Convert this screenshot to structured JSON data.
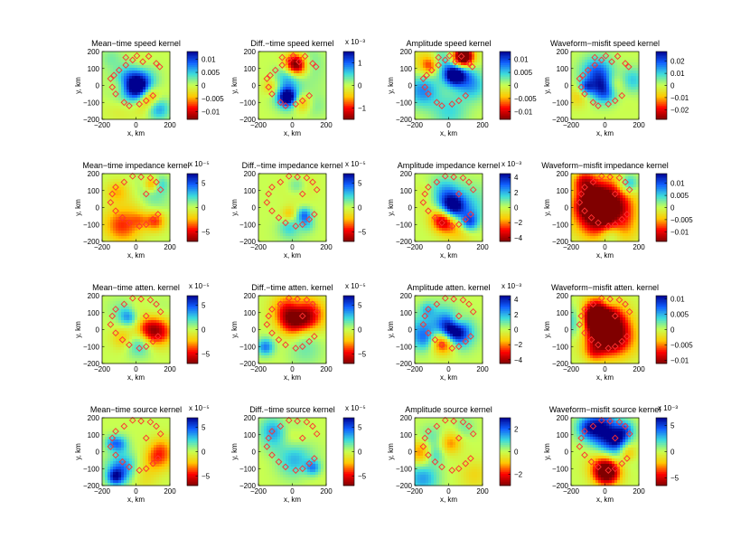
{
  "figure": {
    "axis_xlabel": "x, km",
    "axis_ylabel": "y, km",
    "colormap": [
      "#800000",
      "#ff0000",
      "#ffc800",
      "#c8ff50",
      "#3cdcdc",
      "#1060ff",
      "#000090"
    ],
    "marker_color": "#ff3030"
  },
  "chart_data": [
    {
      "type": "heatmap",
      "row": 0,
      "col": 0,
      "title": "Mean−time speed kernel",
      "exponent": "",
      "cbar_ticks": [
        "0.01",
        "0.005",
        "0",
        "−0.005",
        "−0.01"
      ],
      "cbar_tick_values": [
        0.01,
        0.005,
        0,
        -0.005,
        -0.01
      ],
      "cbar_range": [
        -0.013,
        0.013
      ],
      "xticks": [
        "−200",
        "0",
        "200"
      ],
      "yticks": [
        "200",
        "100",
        "0",
        "−100",
        "−200"
      ],
      "xlim": [
        -200,
        200
      ],
      "ylim": [
        -200,
        200
      ],
      "xlabel": "x, km",
      "ylabel": "y, km",
      "pattern": "speed",
      "mode": "meanSpeed"
    },
    {
      "type": "heatmap",
      "row": 0,
      "col": 1,
      "title": "Diff.−time speed kernel",
      "exponent": "x 10⁻³",
      "cbar_ticks": [
        "1",
        "0",
        "−1"
      ],
      "cbar_tick_values": [
        1,
        0,
        -1
      ],
      "cbar_range": [
        -1.5,
        1.5
      ],
      "xticks": [
        "−200",
        "0",
        "200"
      ],
      "yticks": [
        "200",
        "100",
        "0",
        "−100",
        "−200"
      ],
      "xlim": [
        -200,
        200
      ],
      "ylim": [
        -200,
        200
      ],
      "xlabel": "x, km",
      "ylabel": "y, km",
      "pattern": "speed",
      "mode": "diffSpeed"
    },
    {
      "type": "heatmap",
      "row": 0,
      "col": 2,
      "title": "Amplitude speed kernel",
      "exponent": "",
      "cbar_ticks": [
        "0.01",
        "0.005",
        "0",
        "−0.005",
        "−0.01"
      ],
      "cbar_tick_values": [
        0.01,
        0.005,
        0,
        -0.005,
        -0.01
      ],
      "cbar_range": [
        -0.013,
        0.013
      ],
      "xticks": [
        "−200",
        "0",
        "200"
      ],
      "yticks": [
        "200",
        "100",
        "0",
        "−100",
        "−200"
      ],
      "xlim": [
        -200,
        200
      ],
      "ylim": [
        -200,
        200
      ],
      "xlabel": "x, km",
      "ylabel": "y, km",
      "pattern": "speed",
      "mode": "ampSpeed"
    },
    {
      "type": "heatmap",
      "row": 0,
      "col": 3,
      "title": "Waveform−misfit speed kernel",
      "exponent": "",
      "cbar_ticks": [
        "0.02",
        "0.01",
        "0",
        "−0.01",
        "−0.02"
      ],
      "cbar_tick_values": [
        0.02,
        0.01,
        0,
        -0.01,
        -0.02
      ],
      "cbar_range": [
        -0.028,
        0.028
      ],
      "xticks": [
        "−200",
        "0",
        "200"
      ],
      "yticks": [
        "200",
        "100",
        "0",
        "−100",
        "−200"
      ],
      "xlim": [
        -200,
        200
      ],
      "ylim": [
        -200,
        200
      ],
      "xlabel": "x, km",
      "ylabel": "y, km",
      "pattern": "speed",
      "mode": "wfSpeed"
    },
    {
      "type": "heatmap",
      "row": 1,
      "col": 0,
      "title": "Mean−time impedance kernel",
      "exponent": "x 10⁻⁵",
      "cbar_ticks": [
        "5",
        "0",
        "−5"
      ],
      "cbar_tick_values": [
        5,
        0,
        -5
      ],
      "cbar_range": [
        -7,
        7
      ],
      "xticks": [
        "−200",
        "0",
        "200"
      ],
      "yticks": [
        "200",
        "100",
        "0",
        "−100",
        "−200"
      ],
      "xlim": [
        -200,
        200
      ],
      "ylim": [
        -200,
        200
      ],
      "xlabel": "x, km",
      "ylabel": "y, km",
      "pattern": "ring",
      "mode": "meanImp"
    },
    {
      "type": "heatmap",
      "row": 1,
      "col": 1,
      "title": "Diff.−time impedance kernel",
      "exponent": "x 10⁻⁵",
      "cbar_ticks": [
        "5",
        "0",
        "−5"
      ],
      "cbar_tick_values": [
        5,
        0,
        -5
      ],
      "cbar_range": [
        -7,
        7
      ],
      "xticks": [
        "−200",
        "0",
        "200"
      ],
      "yticks": [
        "200",
        "100",
        "0",
        "−100",
        "−200"
      ],
      "xlim": [
        -200,
        200
      ],
      "ylim": [
        -200,
        200
      ],
      "xlabel": "x, km",
      "ylabel": "y, km",
      "pattern": "ring",
      "mode": "diffImp"
    },
    {
      "type": "heatmap",
      "row": 1,
      "col": 2,
      "title": "Amplitude impedance kernel",
      "exponent": "x 10⁻³",
      "cbar_ticks": [
        "4",
        "2",
        "0",
        "−2",
        "−4"
      ],
      "cbar_tick_values": [
        4,
        2,
        0,
        -2,
        -4
      ],
      "cbar_range": [
        -4.5,
        4.5
      ],
      "xticks": [
        "−200",
        "0",
        "200"
      ],
      "yticks": [
        "200",
        "100",
        "0",
        "−100",
        "−200"
      ],
      "xlim": [
        -200,
        200
      ],
      "ylim": [
        -200,
        200
      ],
      "xlabel": "x, km",
      "ylabel": "y, km",
      "pattern": "ring",
      "mode": "ampImp"
    },
    {
      "type": "heatmap",
      "row": 1,
      "col": 3,
      "title": "Waveform−misfit impedance kernel",
      "exponent": "",
      "cbar_ticks": [
        "0.01",
        "0.005",
        "0",
        "−0.005",
        "−0.01"
      ],
      "cbar_tick_values": [
        0.01,
        0.005,
        0,
        -0.005,
        -0.01
      ],
      "cbar_range": [
        -0.014,
        0.014
      ],
      "xticks": [
        "−200",
        "0",
        "200"
      ],
      "yticks": [
        "200",
        "100",
        "0",
        "−100",
        "−200"
      ],
      "xlim": [
        -200,
        200
      ],
      "ylim": [
        -200,
        200
      ],
      "xlabel": "x, km",
      "ylabel": "y, km",
      "pattern": "ring",
      "mode": "wfImp"
    },
    {
      "type": "heatmap",
      "row": 2,
      "col": 0,
      "title": "Mean−time atten. kernel",
      "exponent": "x 10⁻⁵",
      "cbar_ticks": [
        "5",
        "0",
        "−5"
      ],
      "cbar_tick_values": [
        5,
        0,
        -5
      ],
      "cbar_range": [
        -7,
        7
      ],
      "xticks": [
        "−200",
        "0",
        "200"
      ],
      "yticks": [
        "200",
        "100",
        "0",
        "−100",
        "−200"
      ],
      "xlim": [
        -200,
        200
      ],
      "ylim": [
        -200,
        200
      ],
      "xlabel": "x, km",
      "ylabel": "y, km",
      "pattern": "ring",
      "mode": "meanAtt"
    },
    {
      "type": "heatmap",
      "row": 2,
      "col": 1,
      "title": "Diff.−time atten. kernel",
      "exponent": "x 10⁻⁵",
      "cbar_ticks": [
        "5",
        "0",
        "−5"
      ],
      "cbar_tick_values": [
        5,
        0,
        -5
      ],
      "cbar_range": [
        -7,
        7
      ],
      "xticks": [
        "−200",
        "0",
        "200"
      ],
      "yticks": [
        "200",
        "100",
        "0",
        "−100",
        "−200"
      ],
      "xlim": [
        -200,
        200
      ],
      "ylim": [
        -200,
        200
      ],
      "xlabel": "x, km",
      "ylabel": "y, km",
      "pattern": "ring",
      "mode": "diffAtt"
    },
    {
      "type": "heatmap",
      "row": 2,
      "col": 2,
      "title": "Amplitude atten. kernel",
      "exponent": "x 10⁻³",
      "cbar_ticks": [
        "4",
        "2",
        "0",
        "−2",
        "−4"
      ],
      "cbar_tick_values": [
        4,
        2,
        0,
        -2,
        -4
      ],
      "cbar_range": [
        -4.5,
        4.5
      ],
      "xticks": [
        "−200",
        "0",
        "200"
      ],
      "yticks": [
        "200",
        "100",
        "0",
        "−100",
        "−200"
      ],
      "xlim": [
        -200,
        200
      ],
      "ylim": [
        -200,
        200
      ],
      "xlabel": "x, km",
      "ylabel": "y, km",
      "pattern": "ring",
      "mode": "ampAtt"
    },
    {
      "type": "heatmap",
      "row": 2,
      "col": 3,
      "title": "Waveform−misfit atten. kernel",
      "exponent": "",
      "cbar_ticks": [
        "0.01",
        "0.005",
        "0",
        "−0.005",
        "−0.01"
      ],
      "cbar_tick_values": [
        0.01,
        0.005,
        0,
        -0.005,
        -0.01
      ],
      "cbar_range": [
        -0.011,
        0.011
      ],
      "xticks": [
        "−200",
        "0",
        "200"
      ],
      "yticks": [
        "200",
        "100",
        "0",
        "−100",
        "−200"
      ],
      "xlim": [
        -200,
        200
      ],
      "ylim": [
        -200,
        200
      ],
      "xlabel": "x, km",
      "ylabel": "y, km",
      "pattern": "ring",
      "mode": "wfAtt"
    },
    {
      "type": "heatmap",
      "row": 3,
      "col": 0,
      "title": "Mean−time source kernel",
      "exponent": "x 10⁻⁵",
      "cbar_ticks": [
        "5",
        "0",
        "−5"
      ],
      "cbar_tick_values": [
        5,
        0,
        -5
      ],
      "cbar_range": [
        -7,
        7
      ],
      "xticks": [
        "−200",
        "0",
        "200"
      ],
      "yticks": [
        "200",
        "100",
        "0",
        "−100",
        "−200"
      ],
      "xlim": [
        -200,
        200
      ],
      "ylim": [
        -200,
        200
      ],
      "xlabel": "x, km",
      "ylabel": "y, km",
      "pattern": "ring",
      "mode": "meanSrc"
    },
    {
      "type": "heatmap",
      "row": 3,
      "col": 1,
      "title": "Diff.−time source kernel",
      "exponent": "x 10⁻⁵",
      "cbar_ticks": [
        "5",
        "0",
        "−5"
      ],
      "cbar_tick_values": [
        5,
        0,
        -5
      ],
      "cbar_range": [
        -7,
        7
      ],
      "xticks": [
        "−200",
        "0",
        "200"
      ],
      "yticks": [
        "200",
        "100",
        "0",
        "−100",
        "−200"
      ],
      "xlim": [
        -200,
        200
      ],
      "ylim": [
        -200,
        200
      ],
      "xlabel": "x, km",
      "ylabel": "y, km",
      "pattern": "ring",
      "mode": "diffSrc"
    },
    {
      "type": "heatmap",
      "row": 3,
      "col": 2,
      "title": "Amplitude source kernel",
      "exponent": "",
      "cbar_ticks": [
        "2",
        "0",
        "−2"
      ],
      "cbar_tick_values": [
        2,
        0,
        -2
      ],
      "cbar_range": [
        -3,
        3
      ],
      "xticks": [
        "−200",
        "0",
        "200"
      ],
      "yticks": [
        "200",
        "100",
        "0",
        "−100",
        "−200"
      ],
      "xlim": [
        -200,
        200
      ],
      "ylim": [
        -200,
        200
      ],
      "xlabel": "x, km",
      "ylabel": "y, km",
      "pattern": "ring",
      "mode": "ampSrc"
    },
    {
      "type": "heatmap",
      "row": 3,
      "col": 3,
      "title": "Waveform−misfit source kernel",
      "exponent": "x 10⁻³",
      "cbar_ticks": [
        "5",
        "0",
        "−5"
      ],
      "cbar_tick_values": [
        5,
        0,
        -5
      ],
      "cbar_range": [
        -6.5,
        6.5
      ],
      "xticks": [
        "−200",
        "0",
        "200"
      ],
      "yticks": [
        "200",
        "100",
        "0",
        "−100",
        "−200"
      ],
      "xlim": [
        -200,
        200
      ],
      "ylim": [
        -200,
        200
      ],
      "xlabel": "x, km",
      "ylabel": "y, km",
      "pattern": "ring",
      "mode": "wfSrc"
    }
  ],
  "receivers": {
    "speed": [
      [
        -60,
        165
      ],
      [
        5,
        175
      ],
      [
        75,
        172
      ],
      [
        120,
        130
      ],
      [
        140,
        110
      ],
      [
        -100,
        90
      ],
      [
        -130,
        60
      ],
      [
        -150,
        40
      ],
      [
        -140,
        -10
      ],
      [
        -120,
        -50
      ],
      [
        -70,
        -100
      ],
      [
        -40,
        -120
      ],
      [
        20,
        -110
      ],
      [
        60,
        -90
      ],
      [
        100,
        -60
      ],
      [
        -20,
        150
      ],
      [
        40,
        140
      ],
      [
        -60,
        120
      ]
    ],
    "ring": [
      [
        -20,
        185
      ],
      [
        30,
        180
      ],
      [
        85,
        175
      ],
      [
        120,
        150
      ],
      [
        145,
        105
      ],
      [
        -120,
        120
      ],
      [
        -140,
        80
      ],
      [
        -150,
        30
      ],
      [
        -120,
        -20
      ],
      [
        -80,
        -60
      ],
      [
        -40,
        -90
      ],
      [
        20,
        -110
      ],
      [
        60,
        -100
      ],
      [
        100,
        -70
      ],
      [
        130,
        -40
      ],
      [
        -70,
        150
      ],
      [
        60,
        80
      ]
    ]
  }
}
